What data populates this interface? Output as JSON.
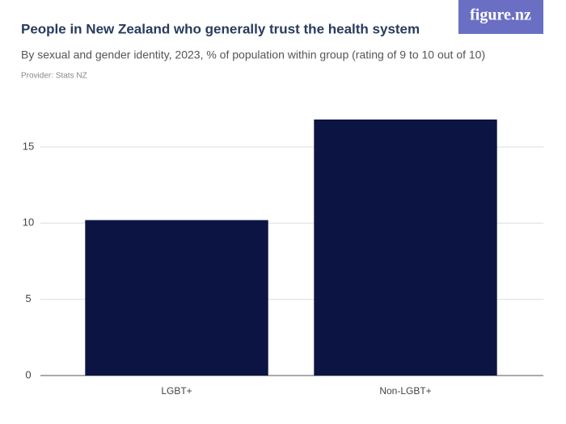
{
  "logo": "figure.nz",
  "chart_data": {
    "type": "bar",
    "title": "People in New Zealand who generally trust the health system",
    "subtitle": "By sexual and gender identity, 2023, % of population within group (rating of 9 to 10 out of 10)",
    "provider": "Provider: Stats NZ",
    "categories": [
      "LGBT+",
      "Non-LGBT+"
    ],
    "values": [
      10.2,
      16.8
    ],
    "color": "#0b1442",
    "ylim": [
      0,
      18
    ],
    "yticks": [
      0,
      5,
      10,
      15
    ],
    "grid": true
  }
}
